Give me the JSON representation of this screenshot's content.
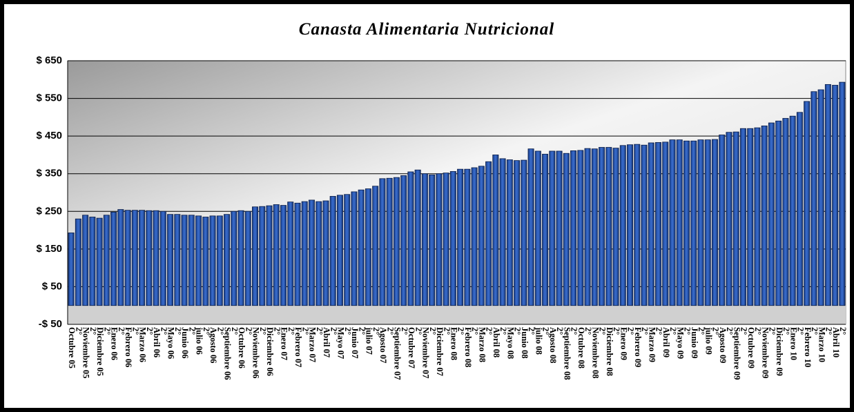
{
  "chart_data": {
    "type": "bar",
    "title": "Canasta Alimentaria Nutricional",
    "categories": [
      "Octubre 05",
      "2°",
      "Noviembre 05",
      "2°",
      "Diciembre 05",
      "2°",
      "Enero 06",
      "2°",
      "Febrero 06",
      "2°",
      "Marzo 06",
      "2°",
      "Abril 06",
      "2°",
      "Mayo 06",
      "2°",
      "Junio 06",
      "2°",
      "julio 06",
      "2°",
      "Agosto 06",
      "2°",
      "Septiembre 06",
      "2°",
      "Octubre 06",
      "2°",
      "Noviembre 06",
      "2°",
      "Diciembre 06",
      "2°",
      "Enero 07",
      "2°",
      "Febrero 07",
      "2°",
      "Marzo 07",
      "2°",
      "Abril 07",
      "2°",
      "Mayo 07",
      "2°",
      "Junio 07",
      "2°",
      "julio 07",
      "2°",
      "Agosto 07",
      "2°",
      "Septiembre 07",
      "2°",
      "Octubre 07",
      "2°",
      "Noviembre 07",
      "2°",
      "Diciembre 07",
      "2°",
      "Enero 08",
      "2°",
      "Febrero 08",
      "2°",
      "Marzo 08",
      "2°",
      "Abril 08",
      "2°",
      "Mayo 08",
      "2°",
      "Junio 08",
      "2°",
      "julio 08",
      "2°",
      "Agosto 08",
      "2°",
      "Septiembre 08",
      "2°",
      "Octubre 08",
      "2°",
      "Noviembre 08",
      "2°",
      "Diciembre 08",
      "2°",
      "Enero 09",
      "2°",
      "Febrero 09",
      "2°",
      "Marzo 09",
      "2°",
      "Abril 09",
      "2°",
      "Mayo 09",
      "2°",
      "Junio 09",
      "2°",
      "julio 09",
      "2°",
      "Agosto 09",
      "2°",
      "Septiembre 09",
      "2°",
      "Octubre 09",
      "2°",
      "Noviembre 09",
      "2°",
      "Diciembre 09",
      "2°",
      "Enero 10",
      "2°",
      "Febrero 10",
      "2°",
      "Marzo 10",
      "2°",
      "Abril 10",
      "2°"
    ],
    "values": [
      193,
      230,
      240,
      235,
      232,
      240,
      248,
      255,
      253,
      253,
      253,
      252,
      252,
      250,
      242,
      242,
      240,
      240,
      238,
      235,
      238,
      238,
      242,
      250,
      252,
      250,
      262,
      263,
      265,
      268,
      266,
      275,
      272,
      276,
      280,
      276,
      278,
      290,
      293,
      295,
      302,
      307,
      310,
      317,
      337,
      338,
      340,
      345,
      355,
      360,
      350,
      347,
      350,
      352,
      356,
      362,
      362,
      366,
      370,
      382,
      400,
      390,
      387,
      385,
      386,
      416,
      410,
      402,
      410,
      410,
      404,
      411,
      412,
      417,
      416,
      420,
      420,
      418,
      425,
      427,
      428,
      426,
      432,
      433,
      434,
      440,
      440,
      437,
      437,
      440,
      440,
      441,
      453,
      460,
      461,
      470,
      470,
      472,
      477,
      485,
      490,
      497,
      503,
      513,
      542,
      568,
      573,
      587,
      585,
      593
    ],
    "color": "#2a56a8",
    "ylim": [
      -50,
      650
    ],
    "yticks": [
      {
        "value": -50,
        "label": "-$ 50"
      },
      {
        "value": 50,
        "label": "$ 50"
      },
      {
        "value": 150,
        "label": "$ 150"
      },
      {
        "value": 250,
        "label": "$ 250"
      },
      {
        "value": 350,
        "label": "$ 350"
      },
      {
        "value": 450,
        "label": "$ 450"
      },
      {
        "value": 550,
        "label": "$ 550"
      },
      {
        "value": 650,
        "label": "$ 650"
      }
    ],
    "grid": true
  }
}
